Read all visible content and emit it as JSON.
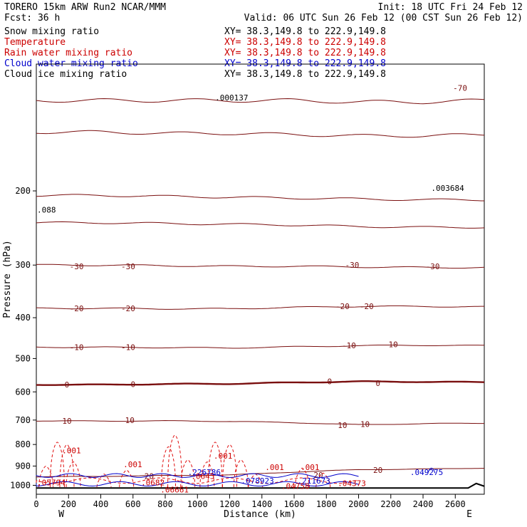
{
  "header": {
    "model": "TORERO  15km ARW   Run2    NCAR/MMM",
    "init": "Init: 18 UTC Fri 24 Feb 12",
    "fcst": "Fcst:   36 h",
    "valid": "Valid: 06 UTC Sun 26 Feb 12 (00 CST Sun 26 Feb 12)"
  },
  "fields": [
    {
      "name": "Snow mixing ratio",
      "xy": "XY=  38.3,149.8 to 222.9,149.8",
      "color": "#000000"
    },
    {
      "name": "Temperature",
      "xy": "XY=  38.3,149.8 to 222.9,149.8",
      "color": "#cc0000"
    },
    {
      "name": "Rain water mixing ratio",
      "xy": "XY=  38.3,149.8 to 222.9,149.8",
      "color": "#cc0000"
    },
    {
      "name": "Cloud water mixing ratio",
      "xy": "XY=  38.3,149.8 to 222.9,149.8",
      "color": "#0000cc"
    },
    {
      "name": "Cloud ice mixing ratio",
      "xy": "XY=  38.3,149.8 to 222.9,149.8",
      "color": "#000000"
    }
  ],
  "colors": {
    "temperature": "#7a0f0f",
    "freezing": "#7a0f0f",
    "rain": "#e01010",
    "cloud_water": "#0000cc",
    "cloud_ice": "#000000",
    "terrain": "#000000"
  },
  "chart_data": {
    "type": "line",
    "xlabel": "Distance (km)",
    "ylabel": "Pressure (hPa)",
    "x_ticks": [
      0,
      200,
      400,
      600,
      800,
      1000,
      1200,
      1400,
      1600,
      1800,
      2000,
      2200,
      2400,
      2600
    ],
    "y_ticks": [
      200,
      300,
      400,
      500,
      600,
      700,
      800,
      900,
      1000
    ],
    "xlim": [
      0,
      2780
    ],
    "ylim": [
      1050,
      100
    ],
    "y_scale": "log",
    "ends": {
      "left": "W",
      "right": "E"
    },
    "temperature_isotherms": [
      {
        "value": -70,
        "p": [
          122,
          122,
          122,
          122,
          122,
          123,
          123,
          122
        ],
        "label": "-70",
        "label_pos": [
          [
            2630,
            114
          ]
        ]
      },
      {
        "value": -60,
        "p": [
          145,
          145,
          146,
          146,
          147,
          148,
          148,
          147
        ],
        "label": "",
        "label_pos": []
      },
      {
        "value": -50,
        "p": [
          205,
          205,
          206,
          207,
          208,
          209,
          210,
          210
        ],
        "label": "",
        "label_pos": []
      },
      {
        "value": -40,
        "p": [
          238,
          238,
          239,
          240,
          241,
          243,
          244,
          244
        ],
        "label": "",
        "label_pos": []
      },
      {
        "value": -30,
        "p": [
          300,
          300,
          301,
          302,
          302,
          303,
          304,
          304
        ],
        "label": "-30",
        "label_pos": [
          [
            250,
            302
          ],
          [
            570,
            302
          ],
          [
            1960,
            300
          ],
          [
            2460,
            302
          ]
        ]
      },
      {
        "value": -20,
        "p": [
          380,
          380,
          381,
          381,
          378,
          376,
          376,
          377
        ],
        "label": "-20",
        "label_pos": [
          [
            250,
            380
          ],
          [
            570,
            380
          ],
          [
            1900,
            376
          ],
          [
            2050,
            376
          ]
        ]
      },
      {
        "value": -10,
        "p": [
          470,
          470,
          471,
          472,
          469,
          466,
          465,
          466
        ],
        "label": "-10",
        "label_pos": [
          [
            250,
            470
          ],
          [
            570,
            470
          ],
          [
            1940,
            465
          ],
          [
            2200,
            463
          ]
        ]
      },
      {
        "value": 0,
        "p": [
          577,
          577,
          575,
          574,
          570,
          567,
          568,
          569
        ],
        "label": "0",
        "label_pos": [
          [
            190,
            577
          ],
          [
            600,
            575
          ],
          [
            1820,
            567
          ],
          [
            2120,
            572
          ]
        ]
      },
      {
        "value": 10,
        "p": [
          703,
          704,
          703,
          705,
          710,
          718,
          714,
          712
        ],
        "label": "10",
        "label_pos": [
          [
            190,
            703
          ],
          [
            580,
            701
          ],
          [
            1900,
            720
          ],
          [
            2040,
            716
          ]
        ]
      },
      {
        "value": 20,
        "p": [
          955,
          952,
          948,
          945,
          930,
          918,
          915,
          910
        ],
        "label": "20",
        "label_pos": [
          [
            700,
            950
          ],
          [
            1750,
            945
          ],
          [
            2120,
            920
          ]
        ]
      }
    ],
    "temperature_x": [
      0,
      400,
      800,
      1200,
      1600,
      2000,
      2400,
      2780
    ],
    "max_labels": [
      {
        "text": ".003684",
        "x": 2450,
        "p": 200,
        "color": "#000000"
      },
      {
        "text": ".000137",
        "x": 1110,
        "p": 122,
        "color": "#000000"
      },
      {
        "text": ".088",
        "x": 0,
        "p": 225,
        "color": "#000000"
      },
      {
        "text": ".001",
        "x": 160,
        "p": 840,
        "color": "#cc0000"
      },
      {
        "text": ".001",
        "x": 540,
        "p": 905,
        "color": "#cc0000"
      },
      {
        "text": ".001",
        "x": 1100,
        "p": 865,
        "color": "#cc0000"
      },
      {
        "text": ".001",
        "x": 1420,
        "p": 920,
        "color": "#cc0000"
      },
      {
        "text": ".001",
        "x": 1640,
        "p": 920,
        "color": "#cc0000"
      },
      {
        "text": ".226786",
        "x": 940,
        "p": 945,
        "color": "#0000cc"
      },
      {
        "text": ".078923",
        "x": 1270,
        "p": 990,
        "color": "#0000cc"
      },
      {
        "text": ".211673",
        "x": 1620,
        "p": 990,
        "color": "#0000cc"
      },
      {
        "text": ".049275",
        "x": 2320,
        "p": 945,
        "color": "#0000cc"
      },
      {
        "text": ".05794",
        "x": 0,
        "p": 1000,
        "color": "#cc0000"
      },
      {
        "text": ".0682",
        "x": 650,
        "p": 1000,
        "color": "#cc0000"
      },
      {
        "text": ".04758",
        "x": 1520,
        "p": 1020,
        "color": "#cc0000"
      },
      {
        "text": ".04373",
        "x": 1870,
        "p": 1005,
        "color": "#cc0000"
      },
      {
        "text": ".0645",
        "x": 960,
        "p": 965,
        "color": "#cc0000"
      },
      {
        "text": ".06661",
        "x": 770,
        "p": 1040,
        "color": "#cc0000"
      }
    ]
  }
}
